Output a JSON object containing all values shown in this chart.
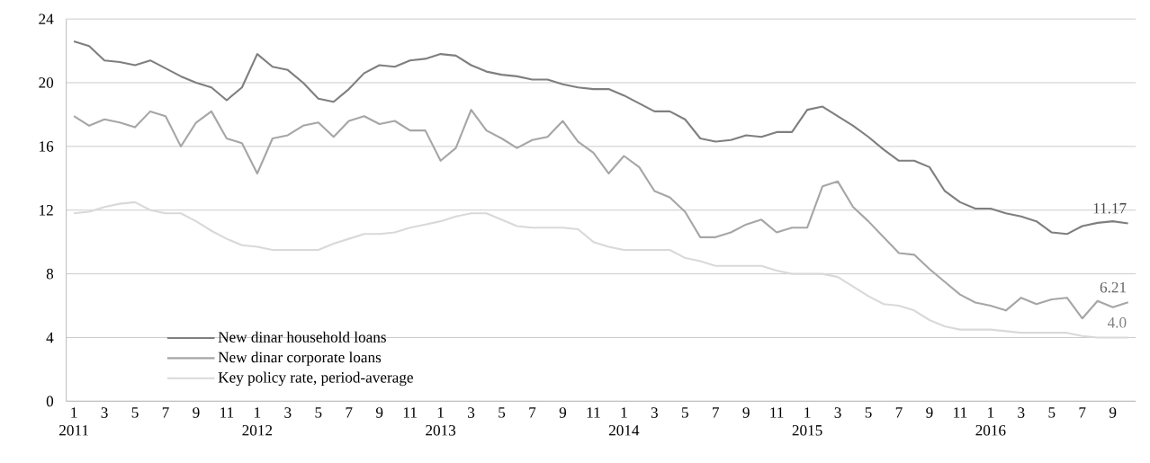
{
  "chart_data": {
    "type": "line",
    "categories": [
      "1 2011",
      null,
      "3",
      null,
      "5",
      null,
      "7",
      null,
      "9",
      null,
      "11",
      null,
      "1 2012",
      null,
      "3",
      null,
      "5",
      null,
      "7",
      null,
      "9",
      null,
      "11",
      null,
      "1 2013",
      null,
      "3",
      null,
      "5",
      null,
      "7",
      null,
      "9",
      null,
      "11",
      null,
      "1 2014",
      null,
      "3",
      null,
      "5",
      null,
      "7",
      null,
      "9",
      null,
      "11",
      null,
      "1 2015",
      null,
      "3",
      null,
      "5",
      null,
      "7",
      null,
      "9",
      null,
      "11",
      null,
      "1 2016",
      null,
      "3",
      null,
      "5",
      null,
      "7",
      null,
      "9",
      null
    ],
    "series": [
      {
        "name": "New dinar household loans",
        "color": "#7f7f7f",
        "values": [
          22.6,
          22.3,
          21.4,
          21.3,
          21.1,
          21.4,
          20.9,
          20.4,
          20.0,
          19.7,
          18.9,
          19.7,
          21.8,
          21.0,
          20.8,
          20.0,
          19.0,
          18.8,
          19.6,
          20.6,
          21.1,
          21.0,
          21.4,
          21.5,
          21.8,
          21.7,
          21.1,
          20.7,
          20.5,
          20.4,
          20.2,
          20.2,
          19.9,
          19.7,
          19.6,
          19.6,
          19.2,
          18.7,
          18.2,
          18.2,
          17.7,
          16.5,
          16.3,
          16.4,
          16.7,
          16.6,
          16.9,
          16.9,
          18.3,
          18.5,
          17.9,
          17.3,
          16.6,
          15.8,
          15.1,
          15.1,
          14.7,
          13.2,
          12.5,
          12.1,
          12.1,
          11.8,
          11.6,
          11.3,
          10.6,
          10.5,
          11.0,
          11.2,
          11.3,
          11.17
        ],
        "value_labels": [
          null,
          null,
          null,
          null,
          null,
          null,
          null,
          null,
          null,
          null,
          null,
          null,
          null,
          null,
          null,
          null,
          null,
          null,
          null,
          null,
          null,
          null,
          null,
          null,
          null,
          null,
          null,
          null,
          null,
          null,
          null,
          null,
          null,
          null,
          null,
          null,
          null,
          null,
          null,
          null,
          null,
          null,
          null,
          null,
          null,
          null,
          null,
          null,
          null,
          null,
          null,
          null,
          null,
          null,
          null,
          null,
          null,
          null,
          null,
          null,
          null,
          null,
          null,
          null,
          null,
          null,
          null,
          null,
          null,
          "11.17"
        ]
      },
      {
        "name": "New dinar corporate loans",
        "color": "#a6a6a6",
        "values": [
          17.9,
          17.3,
          17.7,
          17.5,
          17.2,
          18.2,
          17.9,
          16.0,
          17.5,
          18.2,
          16.5,
          16.2,
          14.3,
          16.5,
          16.7,
          17.3,
          17.5,
          16.6,
          17.6,
          17.9,
          17.4,
          17.6,
          17.0,
          17.0,
          15.1,
          15.9,
          18.3,
          17.0,
          16.5,
          15.9,
          16.4,
          16.6,
          17.6,
          16.3,
          15.6,
          14.3,
          15.4,
          14.7,
          13.2,
          12.8,
          11.9,
          10.3,
          10.3,
          10.6,
          11.1,
          11.4,
          10.6,
          10.9,
          10.9,
          13.5,
          13.8,
          12.2,
          11.3,
          10.3,
          9.3,
          9.2,
          8.3,
          7.5,
          6.7,
          6.2,
          6.0,
          5.7,
          6.5,
          6.1,
          6.4,
          6.5,
          5.2,
          6.3,
          5.9,
          6.21
        ],
        "value_labels": [
          null,
          null,
          null,
          null,
          null,
          null,
          null,
          null,
          null,
          null,
          null,
          null,
          null,
          null,
          null,
          null,
          null,
          null,
          null,
          null,
          null,
          null,
          null,
          null,
          null,
          null,
          null,
          null,
          null,
          null,
          null,
          null,
          null,
          null,
          null,
          null,
          null,
          null,
          null,
          null,
          null,
          null,
          null,
          null,
          null,
          null,
          null,
          null,
          null,
          null,
          null,
          null,
          null,
          null,
          null,
          null,
          null,
          null,
          null,
          null,
          null,
          null,
          null,
          null,
          null,
          null,
          null,
          null,
          null,
          "6.21"
        ]
      },
      {
        "name": "Key policy rate, period-average",
        "color": "#d9d9d9",
        "values": [
          11.8,
          11.9,
          12.2,
          12.4,
          12.5,
          12.0,
          11.8,
          11.8,
          11.3,
          10.7,
          10.2,
          9.8,
          9.7,
          9.5,
          9.5,
          9.5,
          9.5,
          9.9,
          10.2,
          10.5,
          10.5,
          10.6,
          10.9,
          11.1,
          11.3,
          11.6,
          11.8,
          11.8,
          11.4,
          11.0,
          10.9,
          10.9,
          10.9,
          10.8,
          10.0,
          9.7,
          9.5,
          9.5,
          9.5,
          9.5,
          9.0,
          8.8,
          8.5,
          8.5,
          8.5,
          8.5,
          8.2,
          8.0,
          8.0,
          8.0,
          7.8,
          7.2,
          6.6,
          6.1,
          6.0,
          5.7,
          5.1,
          4.7,
          4.5,
          4.5,
          4.5,
          4.4,
          4.3,
          4.3,
          4.3,
          4.3,
          4.1,
          4.0,
          4.0,
          4.0
        ],
        "value_labels": [
          null,
          null,
          null,
          null,
          null,
          null,
          null,
          null,
          null,
          null,
          null,
          null,
          null,
          null,
          null,
          null,
          null,
          null,
          null,
          null,
          null,
          null,
          null,
          null,
          null,
          null,
          null,
          null,
          null,
          null,
          null,
          null,
          null,
          null,
          null,
          null,
          null,
          null,
          null,
          null,
          null,
          null,
          null,
          null,
          null,
          null,
          null,
          null,
          null,
          null,
          null,
          null,
          null,
          null,
          null,
          null,
          null,
          null,
          null,
          null,
          null,
          null,
          null,
          null,
          null,
          null,
          null,
          null,
          null,
          "4.0"
        ]
      }
    ],
    "ylim": [
      0,
      24
    ],
    "yticks": [
      0,
      4,
      8,
      12,
      16,
      20,
      24
    ],
    "grid": "y",
    "legend": "bottom left",
    "marker": "none",
    "line_style": "solid"
  }
}
